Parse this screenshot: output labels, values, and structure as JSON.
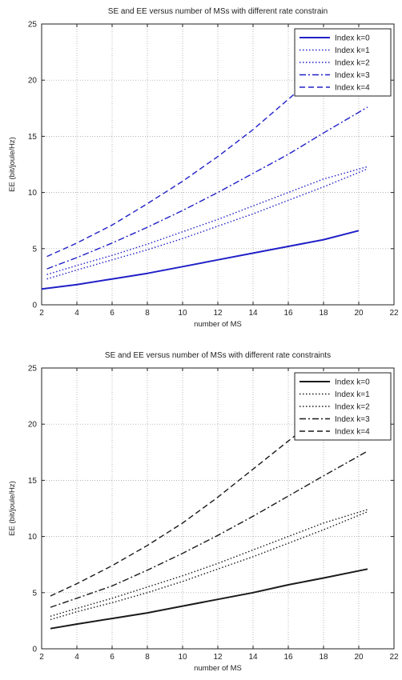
{
  "chart_data": [
    {
      "type": "line",
      "title": "SE and EE versus number of MSs with different rate constrain",
      "xlabel": "number of MS",
      "ylabel": "EE (bit/joule/Hz)",
      "xlim": [
        2,
        22
      ],
      "ylim": [
        0,
        25
      ],
      "xticks": [
        2,
        4,
        6,
        8,
        10,
        12,
        14,
        16,
        18,
        20,
        22
      ],
      "yticks": [
        0,
        5,
        10,
        15,
        20,
        25
      ],
      "grid": true,
      "legend_position": "top-right",
      "color": "#2020c8",
      "series": [
        {
          "name": "Index k=0",
          "style": "solid",
          "x": [
            2,
            4,
            6,
            8,
            10,
            12,
            14,
            16,
            18,
            20
          ],
          "values": [
            1.4,
            1.8,
            2.3,
            2.8,
            3.4,
            4.0,
            4.6,
            5.2,
            5.8,
            6.6
          ]
        },
        {
          "name": "Index k=1",
          "style": "dotted",
          "x": [
            2.3,
            4,
            6,
            8,
            10,
            12,
            14,
            16,
            18,
            20.5
          ],
          "values": [
            2.3,
            3.1,
            4.0,
            4.9,
            5.9,
            7.0,
            8.1,
            9.3,
            10.5,
            12.1
          ]
        },
        {
          "name": "Index k=2",
          "style": "dotted",
          "x": [
            2.3,
            4,
            6,
            8,
            10,
            12,
            14,
            16,
            18,
            20.5
          ],
          "values": [
            2.7,
            3.5,
            4.4,
            5.4,
            6.5,
            7.6,
            8.8,
            10.0,
            11.2,
            12.3
          ]
        },
        {
          "name": "Index k=3",
          "style": "dashdot",
          "x": [
            2.3,
            4,
            6,
            8,
            10,
            12,
            14,
            16,
            18,
            20.5
          ],
          "values": [
            3.2,
            4.2,
            5.5,
            6.9,
            8.4,
            10.0,
            11.7,
            13.4,
            15.3,
            17.6
          ]
        },
        {
          "name": "Index k=4",
          "style": "dashed",
          "x": [
            2.3,
            4,
            6,
            8,
            10,
            12,
            14,
            16,
            18
          ],
          "values": [
            4.3,
            5.5,
            7.1,
            9.0,
            11.0,
            13.2,
            15.6,
            18.3,
            21.0
          ]
        }
      ]
    },
    {
      "type": "line",
      "title": "SE and EE versus number of MSs with different rate constraints",
      "xlabel": "number of MS",
      "ylabel": "EE (bit/joule/Hz)",
      "xlim": [
        2,
        22
      ],
      "ylim": [
        0,
        25
      ],
      "xticks": [
        2,
        4,
        6,
        8,
        10,
        12,
        14,
        16,
        18,
        20,
        22
      ],
      "yticks": [
        0,
        5,
        10,
        15,
        20,
        25
      ],
      "grid": true,
      "legend_position": "top-right",
      "color": "#1a1a1a",
      "series": [
        {
          "name": "Index k=0",
          "style": "solid",
          "x": [
            2.5,
            4,
            6,
            8,
            10,
            12,
            14,
            16,
            18,
            20.5
          ],
          "values": [
            1.8,
            2.2,
            2.7,
            3.2,
            3.8,
            4.4,
            5.0,
            5.7,
            6.3,
            7.1
          ]
        },
        {
          "name": "Index k=1",
          "style": "dotted",
          "x": [
            2.5,
            4,
            6,
            8,
            10,
            12,
            14,
            16,
            18,
            20.5
          ],
          "values": [
            2.6,
            3.3,
            4.1,
            5.0,
            6.0,
            7.1,
            8.2,
            9.4,
            10.6,
            12.2
          ]
        },
        {
          "name": "Index k=2",
          "style": "dotted",
          "x": [
            2.5,
            4,
            6,
            8,
            10,
            12,
            14,
            16,
            18,
            20.5
          ],
          "values": [
            2.9,
            3.6,
            4.5,
            5.5,
            6.5,
            7.6,
            8.8,
            10.0,
            11.2,
            12.4
          ]
        },
        {
          "name": "Index k=3",
          "style": "dashdot",
          "x": [
            2.5,
            4,
            6,
            8,
            10,
            12,
            14,
            16,
            18,
            20.5
          ],
          "values": [
            3.7,
            4.5,
            5.6,
            7.0,
            8.5,
            10.1,
            11.8,
            13.6,
            15.4,
            17.6
          ]
        },
        {
          "name": "Index k=4",
          "style": "dashed",
          "x": [
            2.5,
            4,
            6,
            8,
            10,
            12,
            14,
            16,
            18
          ],
          "values": [
            4.7,
            5.8,
            7.4,
            9.2,
            11.2,
            13.5,
            16.0,
            18.5,
            21.0
          ]
        }
      ]
    }
  ]
}
